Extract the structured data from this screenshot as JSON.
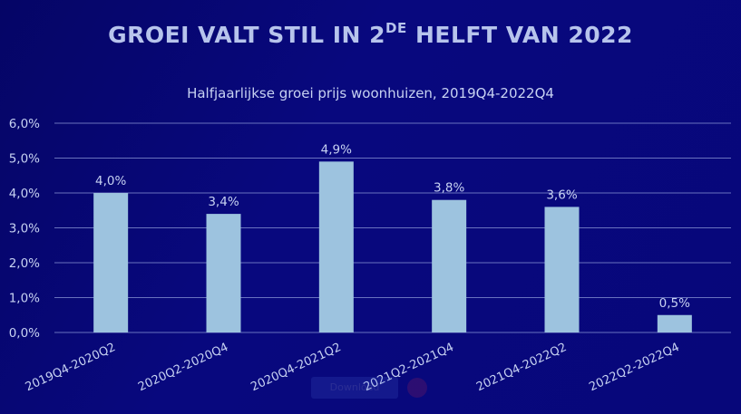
{
  "title_main": "GROEI VALT STIL IN 2",
  "title_sup": "DE",
  "title_end": " HELFT VAN 2022",
  "watermark_label": "Download",
  "colors": {
    "background": "#07077a",
    "bar": "#9dc3df",
    "text": "#c7d2f2",
    "grid": "#8a96d6"
  },
  "chart_data": {
    "type": "bar",
    "title": "GROEI VALT STIL IN 2DE HELFT VAN 2022",
    "subtitle": "Halfjaarlijkse groei prijs woonhuizen, 2019Q4-2022Q4",
    "categories": [
      "2019Q4-2020Q2",
      "2020Q2-2020Q4",
      "2020Q4-2021Q2",
      "2021Q2-2021Q4",
      "2021Q4-2022Q2",
      "2022Q2-2022Q4"
    ],
    "values": [
      4.0,
      3.4,
      4.9,
      3.8,
      3.6,
      0.5
    ],
    "data_labels": [
      "4,0%",
      "3,4%",
      "4,9%",
      "3,8%",
      "3,6%",
      "0,5%"
    ],
    "y_ticks": [
      "0,0%",
      "1,0%",
      "2,0%",
      "3,0%",
      "4,0%",
      "5,0%",
      "6,0%"
    ],
    "ylim": [
      0,
      6
    ],
    "xlabel": "",
    "ylabel": "",
    "grid": true,
    "legend": "none"
  }
}
